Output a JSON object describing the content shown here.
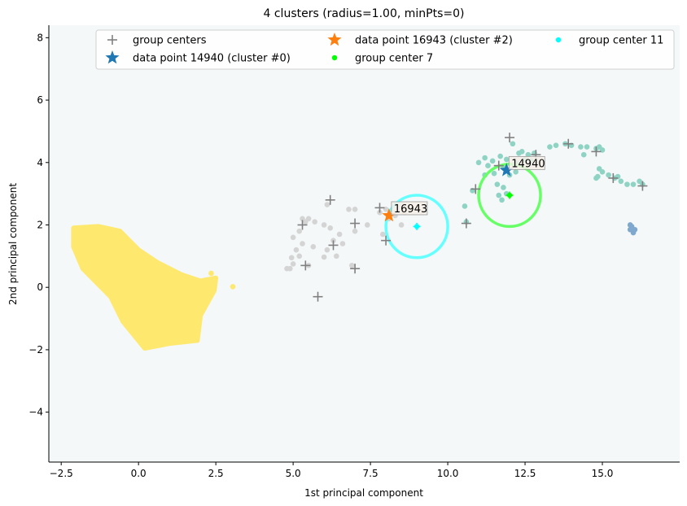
{
  "chart_data": {
    "type": "scatter",
    "title": "4 clusters (radius=1.00, minPts=0)",
    "xlabel": "1st principal component",
    "ylabel": "2nd principal component",
    "xlim": [
      -2.9,
      17.5
    ],
    "ylim": [
      -5.6,
      8.4
    ],
    "xticks": [
      -2.5,
      0.0,
      2.5,
      5.0,
      7.5,
      10.0,
      12.5,
      15.0
    ],
    "xtick_labels": [
      "−2.5",
      "0.0",
      "2.5",
      "5.0",
      "7.5",
      "10.0",
      "12.5",
      "15.0"
    ],
    "yticks": [
      -4,
      -2,
      0,
      2,
      4,
      6,
      8
    ],
    "ytick_labels": [
      "−4",
      "−2",
      "0",
      "2",
      "4",
      "6",
      "8"
    ],
    "grid": false,
    "legend_position": "top",
    "legend": [
      {
        "label": "group centers",
        "marker": "plus",
        "color": "#808080"
      },
      {
        "label": "data point 14940 (cluster #0)",
        "marker": "star",
        "color": "#1f77b4"
      },
      {
        "label": "data point 16943 (cluster #2)",
        "marker": "star",
        "color": "#ff7f0e"
      },
      {
        "label": "group center 7",
        "marker": "dot",
        "color": "#00ff00"
      },
      {
        "label": "group center 11",
        "marker": "dot",
        "color": "#00ffff"
      }
    ],
    "colors": {
      "plot_background": "#f4f8f9",
      "cluster_yellow": "#ffe86e",
      "cluster_gray": "#d4d4d4",
      "cluster_teal": "#8ed3c4",
      "cluster_blue": "#7fa8cf",
      "group_center_marker": "#808080",
      "circle_green": "#66ff66",
      "circle_cyan": "#66ffff"
    },
    "clusters": [
      {
        "name": "yellow",
        "color": "#ffe86e",
        "region": [
          [
            -2.1,
            1.9
          ],
          [
            -1.3,
            1.95
          ],
          [
            -0.6,
            1.8
          ],
          [
            0.0,
            1.2
          ],
          [
            0.6,
            0.8
          ],
          [
            1.4,
            0.4
          ],
          [
            2.0,
            0.2
          ],
          [
            2.5,
            0.3
          ],
          [
            2.45,
            -0.1
          ],
          [
            2.0,
            -0.9
          ],
          [
            1.9,
            -1.7
          ],
          [
            1.0,
            -1.8
          ],
          [
            0.2,
            -1.95
          ],
          [
            -0.5,
            -1.1
          ],
          [
            -0.9,
            -0.3
          ],
          [
            -1.3,
            0.1
          ],
          [
            -1.8,
            0.6
          ],
          [
            -2.1,
            1.3
          ]
        ],
        "outliers": [
          [
            3.05,
            0.02
          ],
          [
            2.35,
            0.45
          ]
        ]
      },
      {
        "name": "gray",
        "color": "#d4d4d4",
        "points": [
          [
            4.8,
            0.6
          ],
          [
            5.0,
            0.75
          ],
          [
            4.9,
            0.6
          ],
          [
            5.2,
            1.0
          ],
          [
            5.1,
            1.2
          ],
          [
            5.3,
            1.4
          ],
          [
            5.0,
            1.6
          ],
          [
            5.2,
            1.8
          ],
          [
            5.5,
            2.2
          ],
          [
            5.7,
            2.1
          ],
          [
            6.0,
            2.0
          ],
          [
            6.2,
            1.9
          ],
          [
            6.3,
            1.5
          ],
          [
            6.5,
            1.7
          ],
          [
            6.1,
            1.2
          ],
          [
            6.0,
            0.97
          ],
          [
            6.9,
            0.7
          ],
          [
            7.0,
            1.8
          ],
          [
            7.4,
            2.0
          ],
          [
            7.8,
            2.4
          ],
          [
            8.0,
            2.5
          ],
          [
            8.1,
            2.2
          ],
          [
            8.3,
            2.3
          ],
          [
            8.5,
            2.0
          ],
          [
            7.0,
            2.5
          ],
          [
            6.8,
            2.5
          ],
          [
            5.4,
            2.1
          ],
          [
            6.4,
            1.0
          ],
          [
            7.9,
            1.7
          ],
          [
            8.6,
            2.4
          ],
          [
            5.5,
            0.7
          ],
          [
            5.3,
            2.2
          ],
          [
            6.6,
            1.4
          ],
          [
            6.1,
            2.65
          ],
          [
            5.65,
            1.3
          ],
          [
            4.95,
            0.95
          ]
        ]
      },
      {
        "name": "teal",
        "color": "#8ed3c4",
        "points": [
          [
            10.6,
            2.1
          ],
          [
            10.55,
            2.6
          ],
          [
            10.8,
            3.1
          ],
          [
            11.2,
            3.6
          ],
          [
            11.5,
            3.65
          ],
          [
            11.2,
            4.15
          ],
          [
            11.0,
            4.0
          ],
          [
            11.3,
            3.9
          ],
          [
            11.6,
            3.3
          ],
          [
            11.8,
            3.2
          ],
          [
            11.9,
            3.0
          ],
          [
            12.0,
            3.6
          ],
          [
            12.2,
            4.0
          ],
          [
            12.1,
            4.6
          ],
          [
            12.3,
            4.3
          ],
          [
            12.5,
            4.1
          ],
          [
            12.6,
            4.25
          ],
          [
            12.8,
            4.3
          ],
          [
            11.7,
            4.2
          ],
          [
            11.8,
            3.85
          ],
          [
            11.9,
            4.1
          ],
          [
            11.65,
            2.95
          ],
          [
            11.75,
            2.8
          ],
          [
            12.2,
            3.7
          ],
          [
            13.3,
            4.5
          ],
          [
            13.5,
            4.55
          ],
          [
            13.8,
            4.6
          ],
          [
            14.0,
            4.55
          ],
          [
            14.3,
            4.5
          ],
          [
            14.4,
            4.25
          ],
          [
            14.5,
            4.5
          ],
          [
            14.8,
            4.45
          ],
          [
            14.9,
            4.5
          ],
          [
            15.0,
            4.4
          ],
          [
            14.9,
            3.8
          ],
          [
            14.8,
            3.5
          ],
          [
            15.0,
            3.7
          ],
          [
            15.2,
            3.6
          ],
          [
            15.4,
            3.5
          ],
          [
            15.6,
            3.4
          ],
          [
            15.8,
            3.3
          ],
          [
            16.0,
            3.3
          ],
          [
            16.2,
            3.4
          ],
          [
            16.3,
            3.3
          ],
          [
            15.5,
            3.55
          ],
          [
            14.85,
            3.55
          ],
          [
            12.7,
            4.05
          ],
          [
            12.4,
            4.35
          ],
          [
            11.45,
            4.05
          ]
        ]
      },
      {
        "name": "blue",
        "color": "#7fa8cf",
        "points": [
          [
            15.9,
            1.85
          ],
          [
            16.0,
            1.75
          ],
          [
            15.95,
            1.95
          ],
          [
            16.05,
            1.85
          ],
          [
            15.9,
            2.0
          ]
        ]
      }
    ],
    "group_centers": [
      [
        5.3,
        2.0
      ],
      [
        6.2,
        2.8
      ],
      [
        5.4,
        0.7
      ],
      [
        6.3,
        1.35
      ],
      [
        7.0,
        2.05
      ],
      [
        7.0,
        0.6
      ],
      [
        5.8,
        -0.3
      ],
      [
        7.8,
        2.55
      ],
      [
        8.0,
        1.5
      ],
      [
        10.6,
        2.05
      ],
      [
        10.9,
        3.15
      ],
      [
        12.0,
        4.8
      ],
      [
        12.85,
        4.25
      ],
      [
        13.9,
        4.6
      ],
      [
        14.8,
        4.35
      ],
      [
        15.35,
        3.5
      ],
      [
        16.3,
        3.25
      ],
      [
        11.65,
        3.9
      ]
    ],
    "highlighted_points": [
      {
        "label": "14940",
        "cluster": 0,
        "x": 11.9,
        "y": 3.75,
        "color": "#1f77b4"
      },
      {
        "label": "16943",
        "cluster": 2,
        "x": 8.1,
        "y": 2.3,
        "color": "#ff7f0e"
      }
    ],
    "group_center_highlights": [
      {
        "name": "group center 7",
        "x": 12.0,
        "y": 2.95,
        "color": "#00ff00",
        "circle_color": "#66ff66",
        "radius": 1.0
      },
      {
        "name": "group center 11",
        "x": 9.0,
        "y": 1.95,
        "color": "#00ffff",
        "circle_color": "#66ffff",
        "radius": 1.0
      }
    ]
  }
}
